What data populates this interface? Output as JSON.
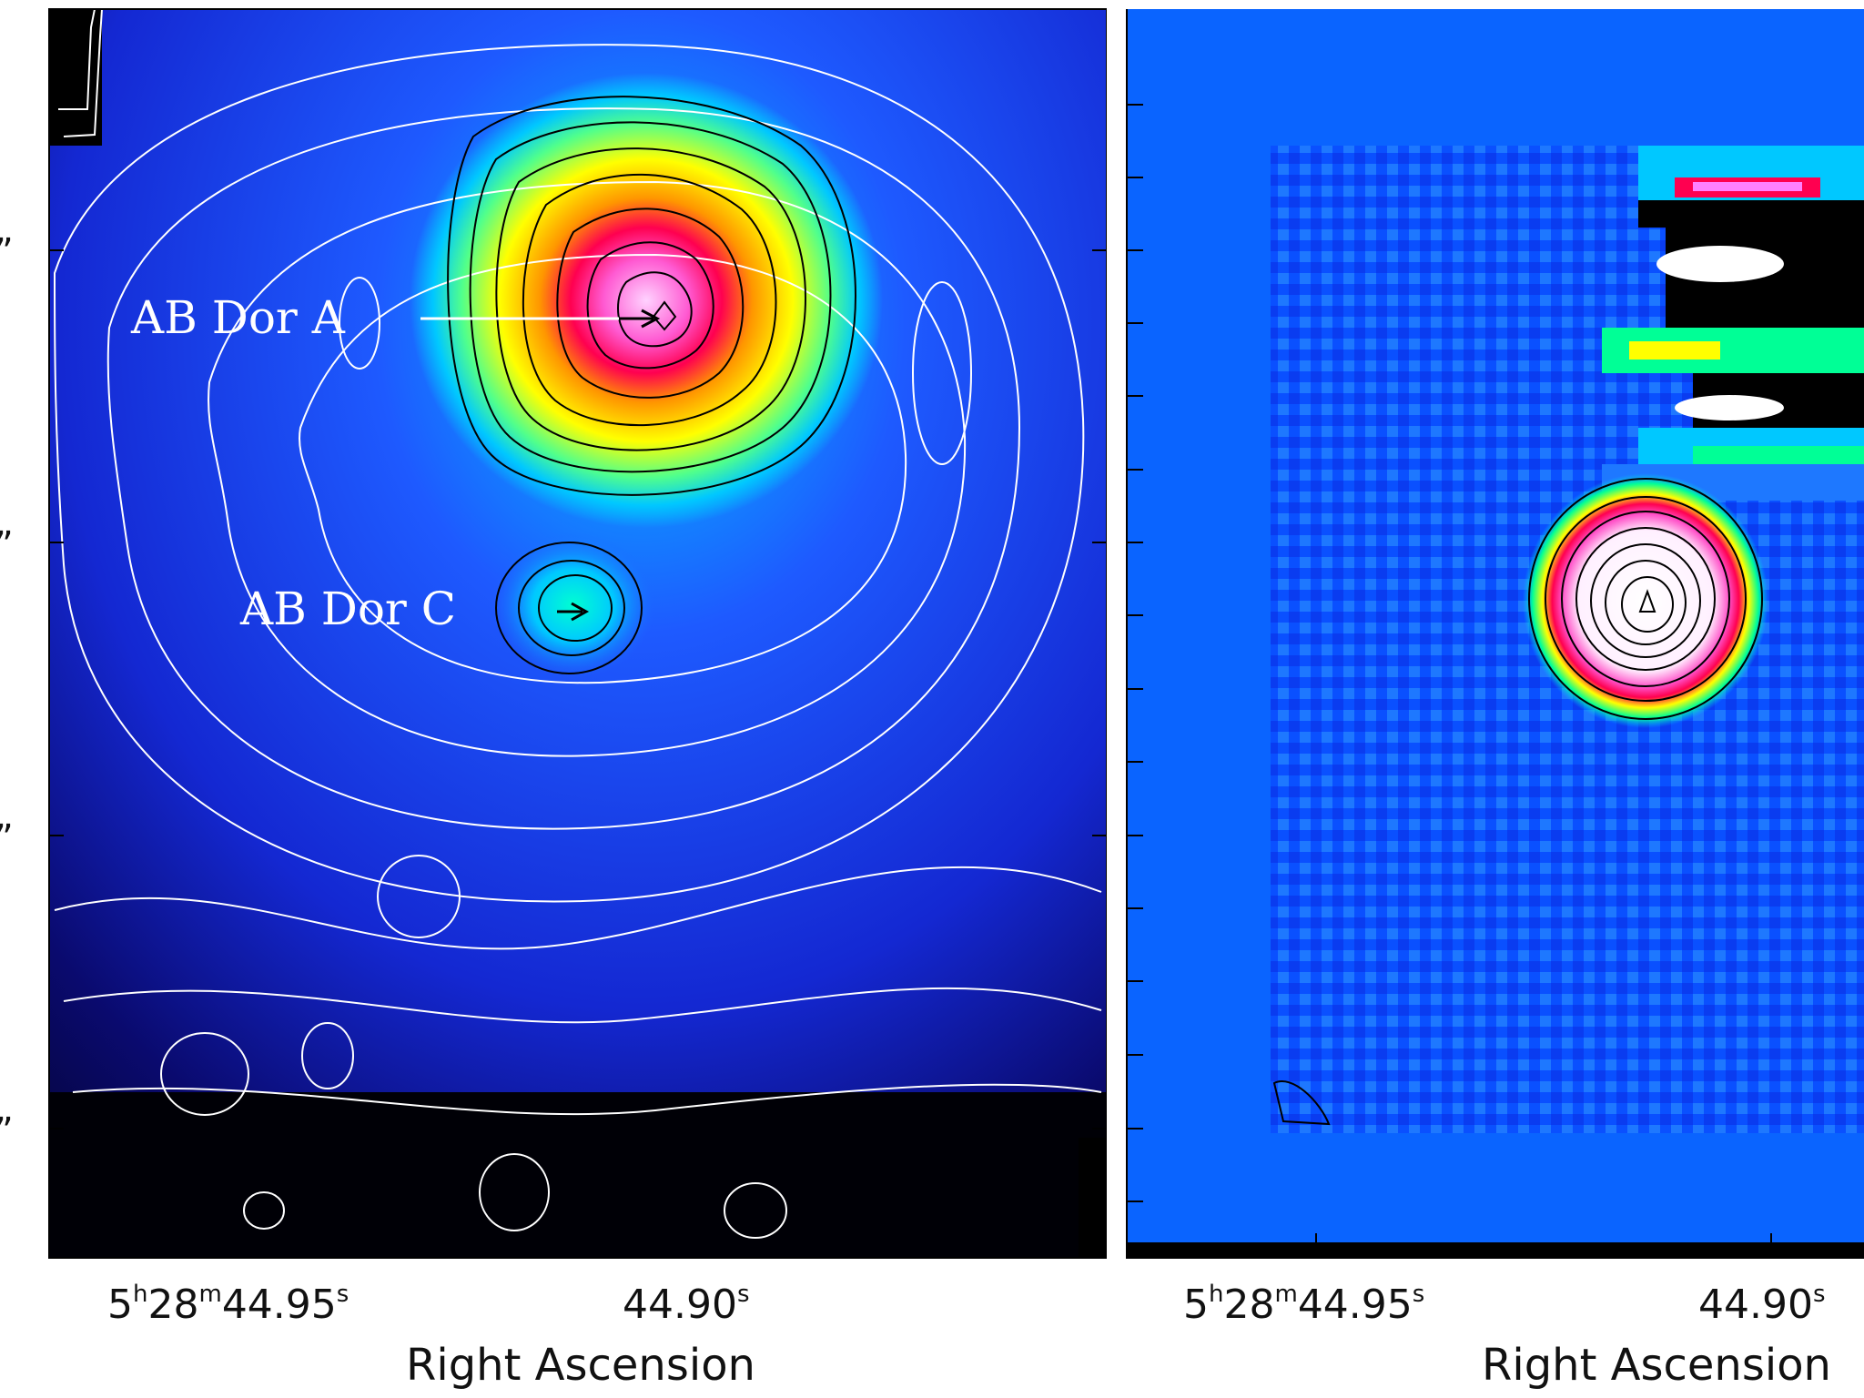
{
  "chart_data": [
    {
      "type": "heatmap",
      "panel": "left",
      "xlabel": "Right Ascension",
      "x_ticks": [
        {
          "main": "5",
          "sup1": "h",
          "mid": "28",
          "sup2": "m",
          "tail": "44.95",
          "sup3": "s"
        },
        {
          "main": "44.90",
          "sup3": "s"
        }
      ],
      "y_tick_labels_partial": [
        "”",
        "”",
        "”",
        "”"
      ],
      "sources": [
        {
          "name": "AB Dor A",
          "role": "bright primary source"
        },
        {
          "name": "AB Dor C",
          "role": "faint companion"
        }
      ],
      "colormap": [
        "#000000",
        "#00008b",
        "#1e3cff",
        "#00c8ff",
        "#00ff7f",
        "#ffff00",
        "#ff8c00",
        "#ff0050",
        "#ff80ff",
        "#ffffff"
      ],
      "contours": {
        "outer_color": "#ffffff",
        "inner_color": "#000000"
      }
    },
    {
      "type": "heatmap",
      "panel": "right",
      "xlabel": "Right Ascension",
      "x_ticks": [
        {
          "main": "5",
          "sup1": "h",
          "mid": "28",
          "sup2": "m",
          "tail": "44.95",
          "sup3": "s"
        },
        {
          "main": "44.90",
          "sup3": "s"
        }
      ],
      "background_color": "#0a64ff",
      "colormap": [
        "#000000",
        "#0a50ff",
        "#00c8ff",
        "#00ff7f",
        "#ffff00",
        "#ff0050",
        "#ff80ff",
        "#ffffff"
      ],
      "contours": {
        "inner_color": "#000000"
      }
    }
  ],
  "labels": {
    "ab_dor_a": "AB Dor A",
    "ab_dor_c": "AB Dor C",
    "xlabel_left": "Right Ascension",
    "xlabel_right": "Right Ascension",
    "tick_left_1_main": "5",
    "tick_left_1_h": "h",
    "tick_left_1_mid": "28",
    "tick_left_1_m": "m",
    "tick_left_1_tail": "44.95",
    "tick_left_1_s": "s",
    "tick_left_2_main": "44.90",
    "tick_left_2_s": "s",
    "tick_right_1_main": "5",
    "tick_right_1_h": "h",
    "tick_right_1_mid": "28",
    "tick_right_1_m": "m",
    "tick_right_1_tail": "44.95",
    "tick_right_1_s": "s",
    "tick_right_2_main": "44.90",
    "tick_right_2_s": "s",
    "ytick_1": "”",
    "ytick_2": "”",
    "ytick_3": "”",
    "ytick_4": "”"
  }
}
